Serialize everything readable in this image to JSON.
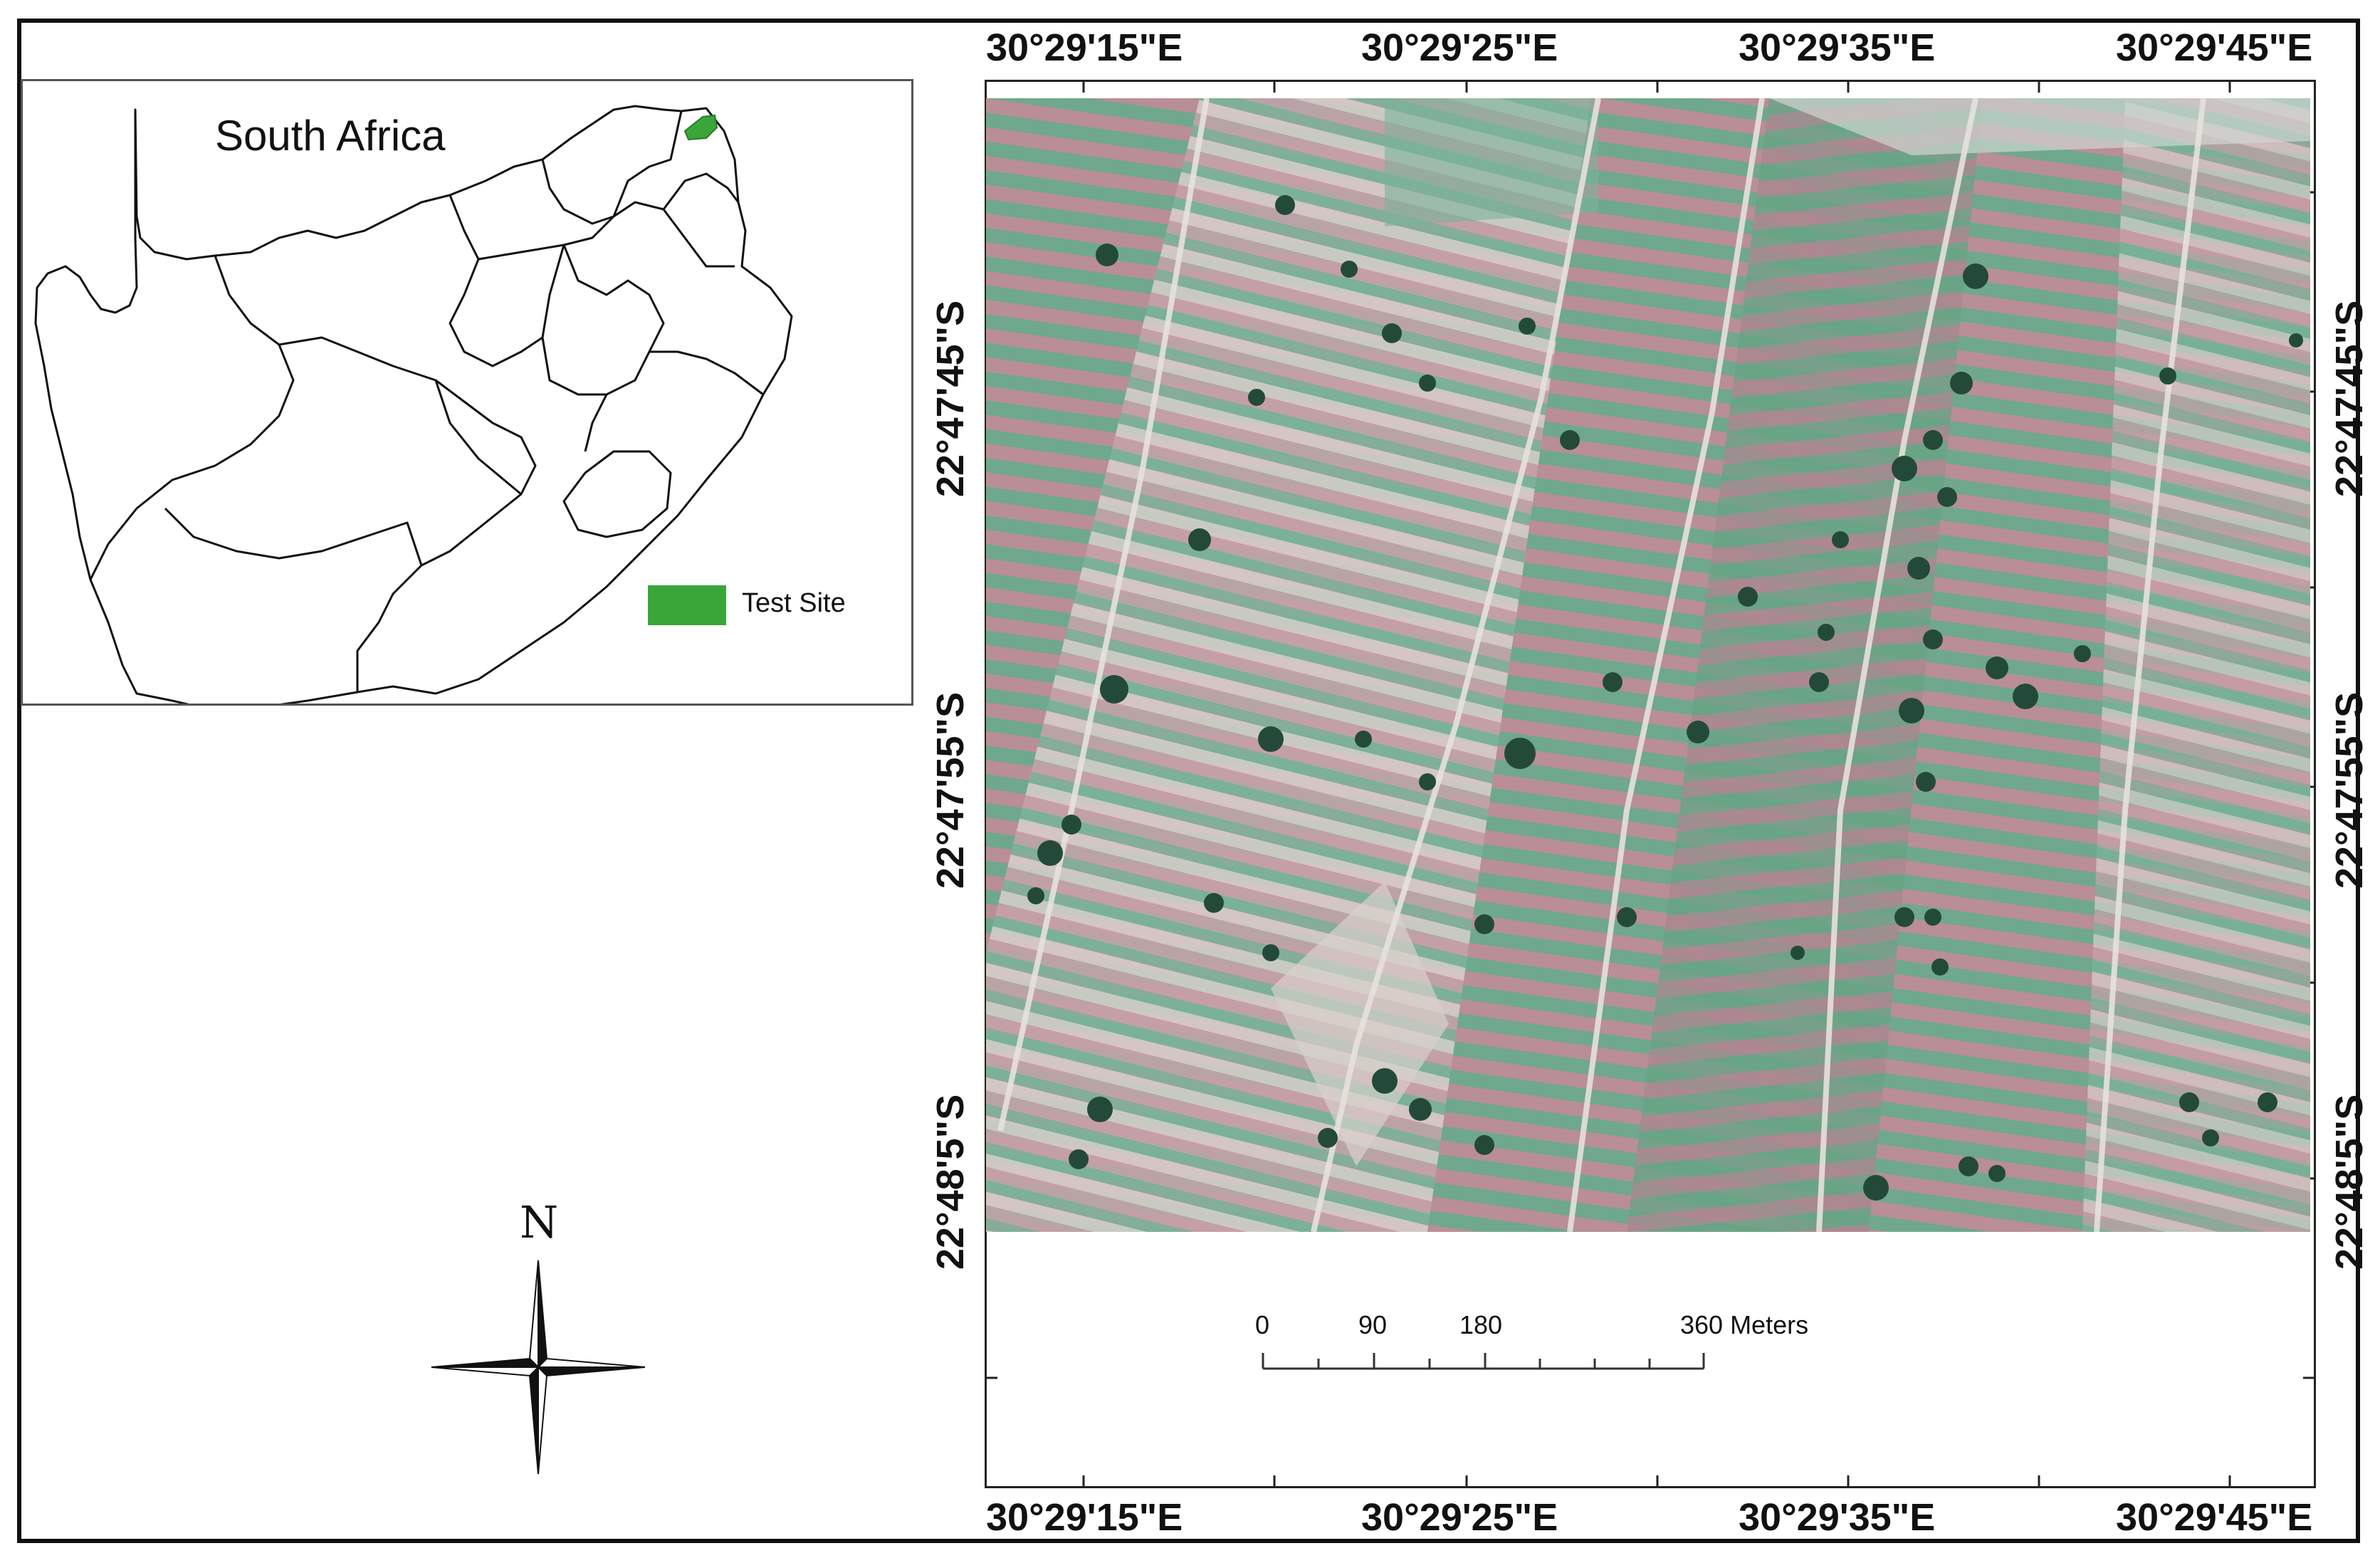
{
  "inset_map": {
    "title": "South Africa",
    "legend_label": "Test Site",
    "test_site_color": "#3aa63a"
  },
  "coordinates": {
    "top": [
      "30°29'15\"E",
      "30°29'25\"E",
      "30°29'35\"E",
      "30°29'45\"E"
    ],
    "bottom": [
      "30°29'15\"E",
      "30°29'25\"E",
      "30°29'35\"E",
      "30°29'45\"E"
    ],
    "left": [
      "22°47'45\"S",
      "22°47'55\"S",
      "22°48'5\"S"
    ],
    "right": [
      "22°47'45\"S",
      "22°47'55\"S",
      "22°48'5\"S"
    ]
  },
  "scale_bar": {
    "labels": [
      "0",
      "90",
      "180",
      "360 Meters"
    ]
  },
  "north_arrow": {
    "letter": "N",
    "icon": "compass-rose-icon"
  },
  "imagery": {
    "colors": {
      "pink": "#b98e96",
      "green": "#6fa88c",
      "pale": "#d8d0cc",
      "tree": "#234a38"
    }
  }
}
